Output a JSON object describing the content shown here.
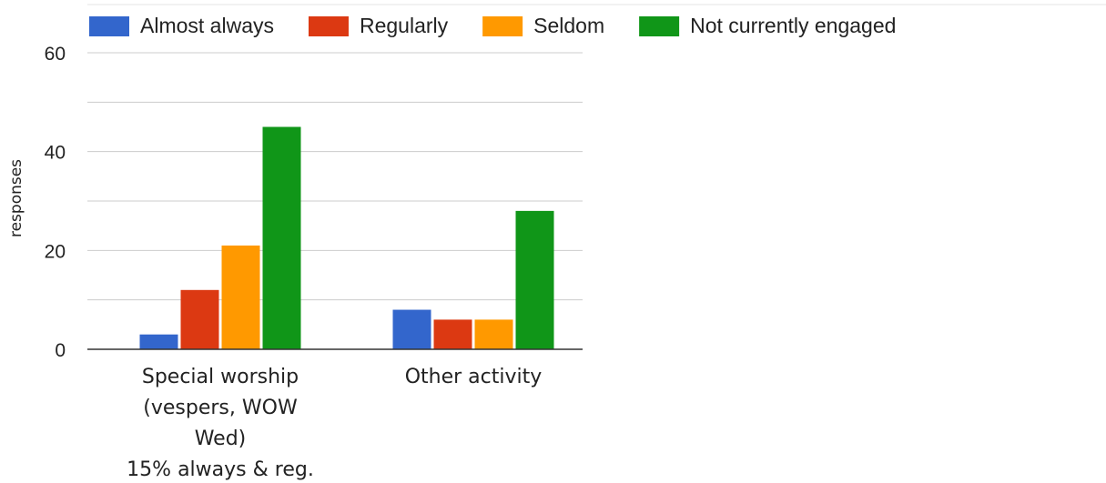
{
  "chart_data": {
    "type": "bar",
    "title": "",
    "xlabel": "",
    "ylabel": "responses",
    "ylim": [
      0,
      60
    ],
    "y_ticks": [
      0,
      20,
      40,
      60
    ],
    "grid": true,
    "legend_position": "top",
    "categories": [
      [
        "Special worship",
        "(vespers, WOW",
        "Wed)",
        "15% always & reg."
      ],
      [
        "Other activity"
      ]
    ],
    "series": [
      {
        "name": "Almost always",
        "color": "#3366cc",
        "values": [
          3,
          8
        ]
      },
      {
        "name": "Regularly",
        "color": "#dc3912",
        "values": [
          12,
          6
        ]
      },
      {
        "name": "Seldom",
        "color": "#ff9900",
        "values": [
          21,
          6
        ]
      },
      {
        "name": "Not currently engaged",
        "color": "#109618",
        "values": [
          45,
          28
        ]
      }
    ]
  }
}
